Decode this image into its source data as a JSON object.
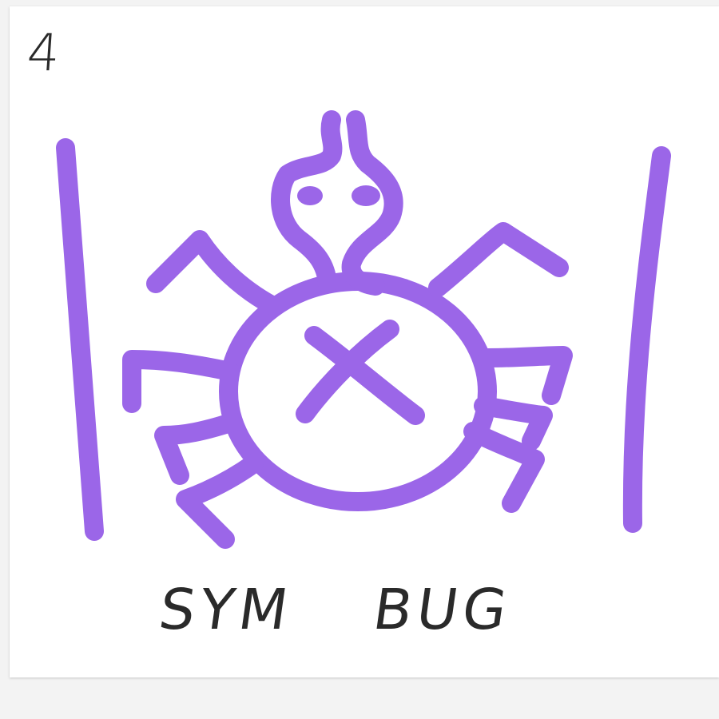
{
  "card": {
    "number": "4",
    "caption_left": "SYM",
    "caption_right": "BUG"
  },
  "colors": {
    "marker": "#9b66e8",
    "ink": "#2a2a2a",
    "paper": "#ffffff"
  }
}
